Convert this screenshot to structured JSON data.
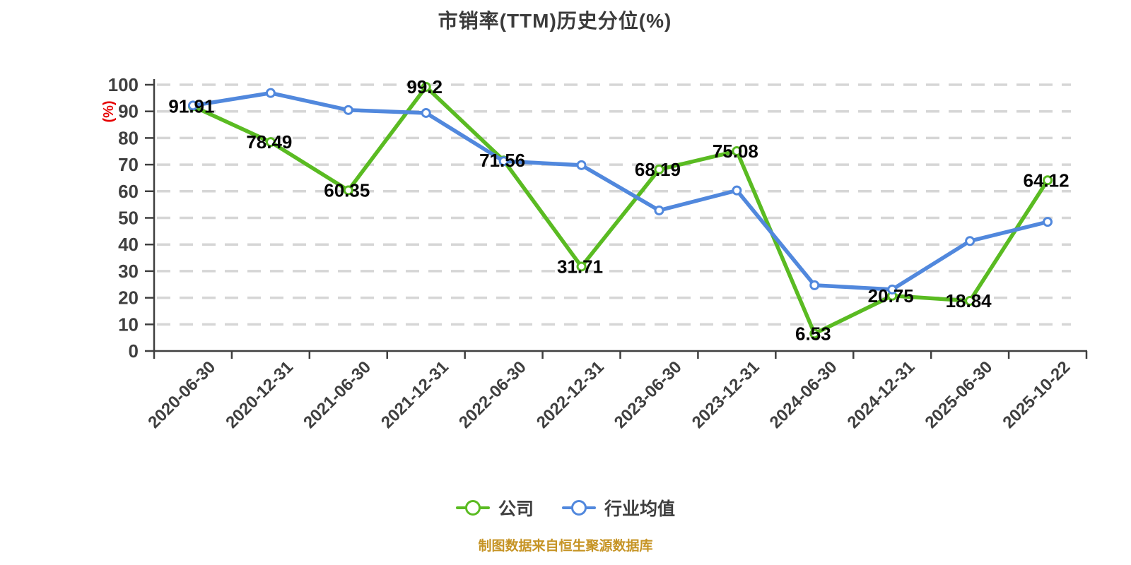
{
  "chart_data": {
    "type": "line",
    "title": "市销率(TTM)历史分位(%)",
    "ylabel": "(%)",
    "xlabel": "",
    "ylim": [
      0,
      100
    ],
    "ytick_step": 10,
    "grid": "horizontal-dashed",
    "legend_position": "bottom",
    "categories": [
      "2020-06-30",
      "2020-12-31",
      "2021-06-30",
      "2021-12-31",
      "2022-06-30",
      "2022-12-31",
      "2023-06-30",
      "2023-12-31",
      "2024-06-30",
      "2024-12-31",
      "2025-06-30",
      "2025-10-22"
    ],
    "series": [
      {
        "name": "公司",
        "color": "#5abb22",
        "values": [
          91.91,
          78.49,
          60.35,
          99.2,
          71.56,
          31.71,
          68.19,
          75.08,
          6.53,
          20.75,
          18.84,
          64.12
        ],
        "point_labels": [
          "91.91",
          "78.49",
          "60.35",
          "99.2",
          "71.56",
          "31.71",
          "68.19",
          "75.08",
          "6.53",
          "20.75",
          "18.84",
          "64.12"
        ]
      },
      {
        "name": "行业均值",
        "color": "#5188dd",
        "values": [
          92.2,
          96.9,
          90.5,
          89.4,
          71.3,
          69.8,
          52.8,
          60.3,
          24.7,
          23.1,
          41.3,
          48.5
        ],
        "point_labels": null
      }
    ]
  },
  "footer": {
    "text": "制图数据来自恒生聚源数据库",
    "color": "#c69425"
  },
  "styles": {
    "title_color": "#3b3b3b",
    "axis_color": "#3f3f3f",
    "grid_color": "#d6d6d6",
    "tick_label_color": "#3f3f3f",
    "data_label_color": "#050505",
    "ylabel_color": "#e60000",
    "marker_fill": "#ffffff"
  }
}
